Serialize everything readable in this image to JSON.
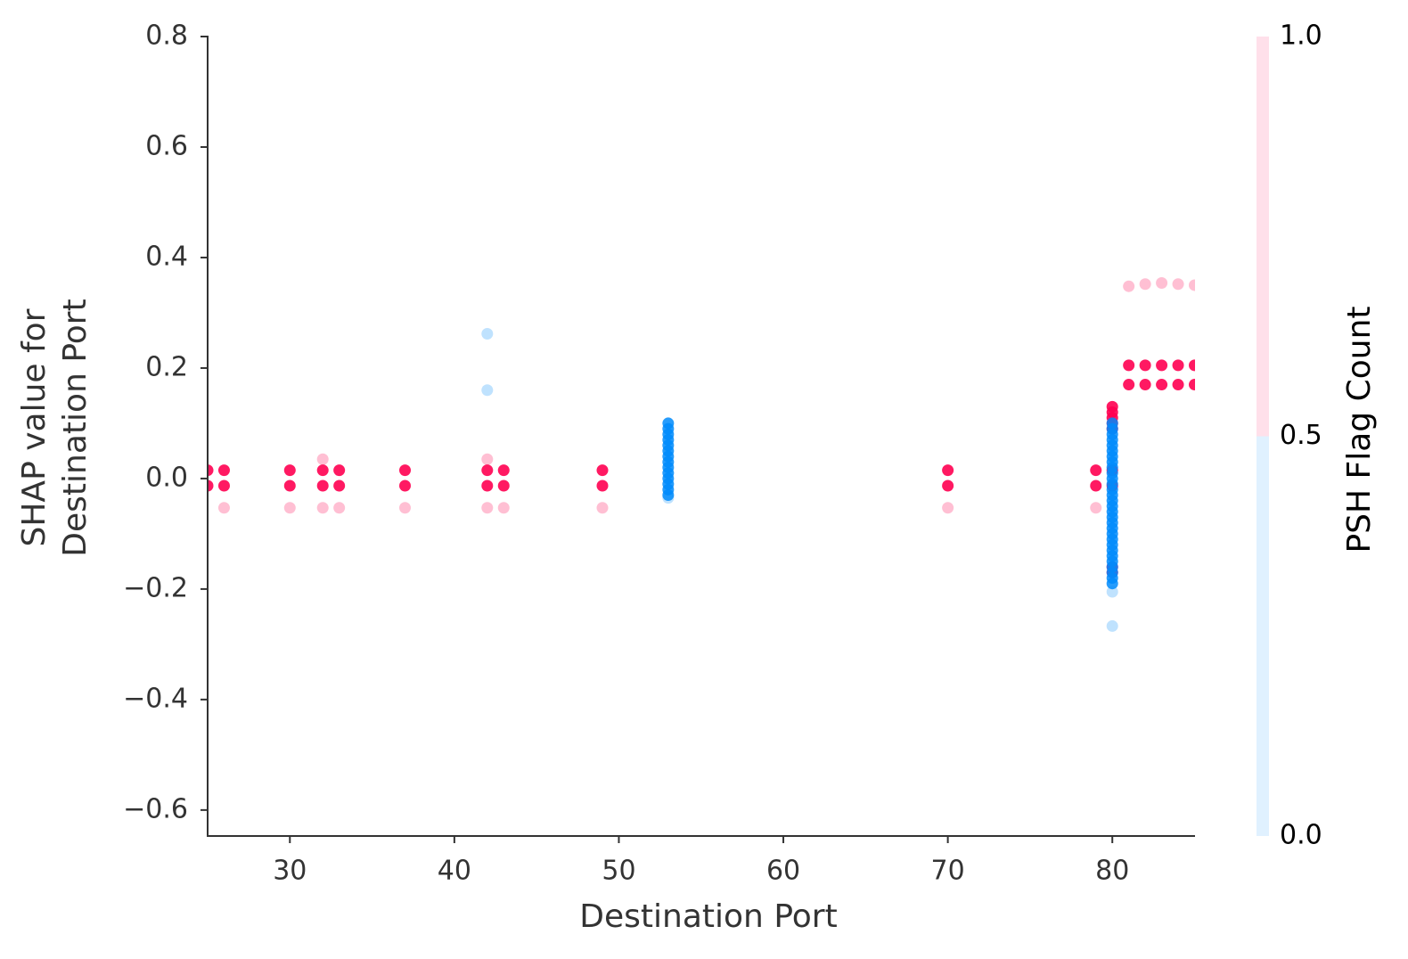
{
  "chart_data": {
    "type": "scatter",
    "xlabel": "Destination Port",
    "ylabel": [
      "SHAP value for",
      "Destination Port"
    ],
    "xlim": [
      25,
      85
    ],
    "ylim": [
      -0.647,
      0.8
    ],
    "xticks": [
      30,
      40,
      50,
      60,
      70,
      80
    ],
    "yticks": [
      {
        "value": -0.6,
        "label": "−0.6"
      },
      {
        "value": -0.4,
        "label": "−0.4"
      },
      {
        "value": -0.2,
        "label": "−0.2"
      },
      {
        "value": 0,
        "label": "0.0"
      },
      {
        "value": 0.2,
        "label": "0.2"
      },
      {
        "value": 0.4,
        "label": "0.4"
      },
      {
        "value": 0.6,
        "label": "0.6"
      },
      {
        "value": 0.8,
        "label": "0.8"
      }
    ],
    "series": [
      {
        "color": "#ff0051",
        "opacity": 0.9,
        "x": [
          25,
          25,
          26,
          26,
          30,
          30,
          32,
          32,
          33,
          33,
          37,
          37,
          42,
          42,
          43,
          43,
          49,
          49,
          70,
          70,
          79,
          79,
          80,
          80,
          80,
          80,
          80,
          80,
          80,
          80,
          80,
          81,
          81,
          82,
          82,
          83,
          83,
          84,
          84,
          85,
          85
        ],
        "values": [
          0.015,
          -0.013,
          0.015,
          -0.013,
          0.015,
          -0.013,
          0.015,
          -0.013,
          0.015,
          -0.013,
          0.015,
          -0.013,
          0.015,
          -0.013,
          0.015,
          -0.013,
          0.015,
          -0.013,
          0.015,
          -0.013,
          0.015,
          -0.013,
          0.13,
          0.12,
          0.11,
          0.1,
          0.09,
          0.015,
          -0.013,
          -0.16,
          -0.17,
          0.205,
          0.17,
          0.205,
          0.17,
          0.205,
          0.17,
          0.205,
          0.17,
          0.205,
          0.17
        ]
      },
      {
        "color": "#ff0051",
        "opacity": 0.25,
        "x": [
          26,
          30,
          32,
          33,
          37,
          42,
          43,
          49,
          70,
          79,
          32,
          42,
          81,
          82,
          83,
          84,
          85
        ],
        "values": [
          -0.053,
          -0.053,
          -0.053,
          -0.053,
          -0.053,
          -0.053,
          -0.053,
          -0.053,
          -0.053,
          -0.053,
          0.035,
          0.035,
          0.348,
          0.352,
          0.354,
          0.352,
          0.35
        ]
      },
      {
        "color": "#008bfb",
        "opacity": 0.85,
        "x": [
          53,
          53,
          53,
          53,
          53,
          53,
          53,
          53,
          53,
          53,
          53,
          53,
          53,
          53,
          80,
          80,
          80,
          80,
          80,
          80,
          80,
          80,
          80,
          80,
          80,
          80,
          80,
          80,
          80,
          80,
          80,
          80,
          80,
          80,
          80,
          80,
          80,
          80,
          80,
          80,
          80,
          80,
          80,
          80
        ],
        "values": [
          0.1,
          0.09,
          0.08,
          0.07,
          0.06,
          0.05,
          0.04,
          0.03,
          0.02,
          0.01,
          0,
          -0.01,
          -0.02,
          -0.03,
          0.1,
          0.09,
          0.08,
          0.07,
          0.06,
          0.05,
          0.04,
          0.03,
          0.02,
          0.01,
          0,
          -0.01,
          -0.02,
          -0.03,
          -0.04,
          -0.05,
          -0.06,
          -0.07,
          -0.08,
          -0.09,
          -0.1,
          -0.11,
          -0.12,
          -0.13,
          -0.14,
          -0.15,
          -0.16,
          -0.17,
          -0.18,
          -0.19
        ]
      },
      {
        "color": "#008bfb",
        "opacity": 0.25,
        "x": [
          42,
          42,
          80,
          80,
          53
        ],
        "values": [
          0.262,
          0.16,
          -0.205,
          -0.267,
          -0.035
        ]
      }
    ],
    "colorbar": {
      "label": "PSH Flag Count",
      "lim": [
        0,
        1
      ],
      "colors": [
        "#008bfb",
        "#ff0051"
      ],
      "opacity": 0.12,
      "ticks": [
        {
          "value": 0,
          "label": "0.0"
        },
        {
          "value": 0.5,
          "label": "0.5"
        },
        {
          "value": 1,
          "label": "1.0"
        }
      ]
    }
  }
}
